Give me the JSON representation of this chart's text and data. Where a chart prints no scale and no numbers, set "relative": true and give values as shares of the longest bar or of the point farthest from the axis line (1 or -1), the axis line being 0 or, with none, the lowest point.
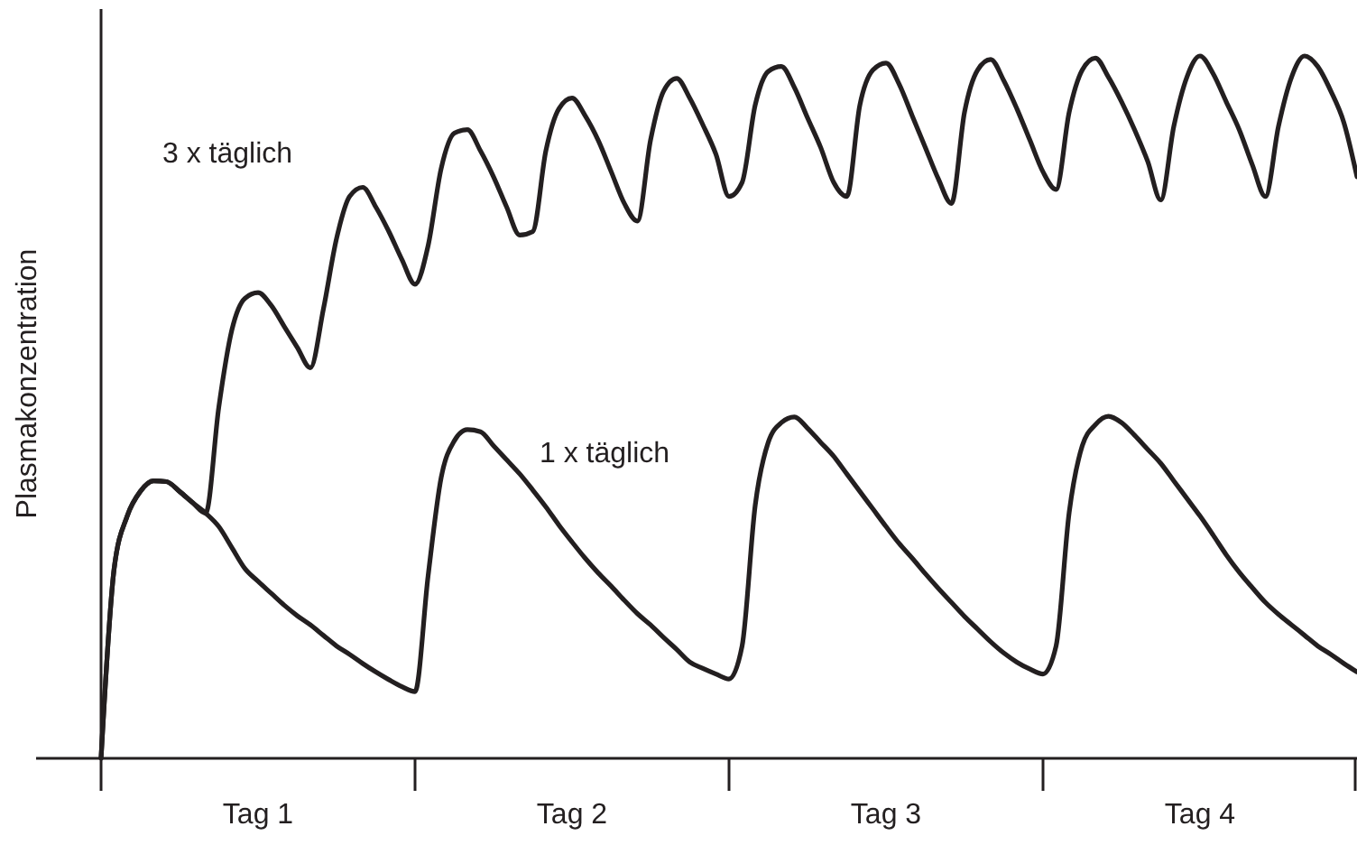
{
  "chart_data": {
    "type": "line",
    "relative": true,
    "ylabel": "Plasmakonzentration",
    "categories": [
      null,
      null,
      null,
      null,
      null,
      null,
      null,
      null,
      null,
      null,
      null,
      null,
      "Tag 1",
      null,
      null,
      null,
      null,
      null,
      null,
      null,
      null,
      null,
      null,
      null,
      null,
      null,
      null,
      null,
      null,
      null,
      null,
      null,
      null,
      null,
      null,
      null,
      "Tag 2",
      null,
      null,
      null,
      null,
      null,
      null,
      null,
      null,
      null,
      null,
      null,
      null,
      null,
      null,
      null,
      null,
      null,
      null,
      null,
      null,
      null,
      null,
      null,
      "Tag 3",
      null,
      null,
      null,
      null,
      null,
      null,
      null,
      null,
      null,
      null,
      null,
      null,
      null,
      null,
      null,
      null,
      null,
      null,
      null,
      null,
      null,
      null,
      null,
      "Tag 4",
      null,
      null,
      null,
      null,
      null,
      null,
      null,
      null,
      null,
      null,
      null,
      null
    ],
    "marker": "none",
    "line_style": "solid",
    "legend": false,
    "grid": false,
    "tick_labels": "x",
    "series": [
      {
        "name": "3 x täglich",
        "color": "#231f20",
        "values": [
          0,
          0.27,
          0.345,
          0.38,
          0.395,
          0.394,
          0.38,
          0.364,
          0.349,
          0.5,
          0.61,
          0.655,
          0.663,
          0.645,
          0.615,
          0.585,
          0.556,
          0.64,
          0.74,
          0.8,
          0.813,
          0.785,
          0.75,
          0.71,
          0.675,
          0.73,
          0.84,
          0.89,
          0.895,
          0.865,
          0.828,
          0.785,
          0.745,
          0.75,
          0.865,
          0.925,
          0.94,
          0.915,
          0.88,
          0.835,
          0.79,
          0.765,
          0.88,
          0.95,
          0.968,
          0.94,
          0.902,
          0.86,
          0.8,
          0.82,
          0.93,
          0.978,
          0.985,
          0.955,
          0.912,
          0.87,
          0.82,
          0.8,
          0.93,
          0.98,
          0.99,
          0.96,
          0.915,
          0.87,
          0.825,
          0.79,
          0.92,
          0.98,
          0.995,
          0.965,
          0.925,
          0.88,
          0.835,
          0.81,
          0.92,
          0.98,
          0.997,
          0.97,
          0.935,
          0.895,
          0.85,
          0.795,
          0.9,
          0.97,
          1,
          0.975,
          0.935,
          0.895,
          0.845,
          0.8,
          0.9,
          0.97,
          1,
          0.985,
          0.95,
          0.905,
          0.828
        ]
      },
      {
        "name": "1 x täglich",
        "color": "#231f20",
        "values": [
          0,
          0.27,
          0.345,
          0.38,
          0.395,
          0.394,
          0.38,
          0.364,
          0.349,
          0.33,
          0.3,
          0.27,
          0.252,
          0.235,
          0.218,
          0.203,
          0.19,
          0.175,
          0.16,
          0.148,
          0.135,
          0.123,
          0.112,
          0.102,
          0.095,
          0.26,
          0.4,
          0.452,
          0.468,
          0.465,
          0.445,
          0.425,
          0.405,
          0.382,
          0.358,
          0.332,
          0.308,
          0.285,
          0.264,
          0.245,
          0.225,
          0.206,
          0.19,
          0.172,
          0.155,
          0.137,
          0.128,
          0.12,
          0.113,
          0.16,
          0.36,
          0.45,
          0.478,
          0.486,
          0.47,
          0.45,
          0.43,
          0.405,
          0.38,
          0.355,
          0.33,
          0.306,
          0.285,
          0.263,
          0.242,
          0.222,
          0.202,
          0.184,
          0.166,
          0.15,
          0.137,
          0.127,
          0.12,
          0.16,
          0.35,
          0.445,
          0.475,
          0.487,
          0.478,
          0.46,
          0.44,
          0.42,
          0.395,
          0.37,
          0.345,
          0.318,
          0.29,
          0.265,
          0.243,
          0.222,
          0.205,
          0.19,
          0.175,
          0.16,
          0.148,
          0.135,
          0.123
        ]
      }
    ]
  }
}
